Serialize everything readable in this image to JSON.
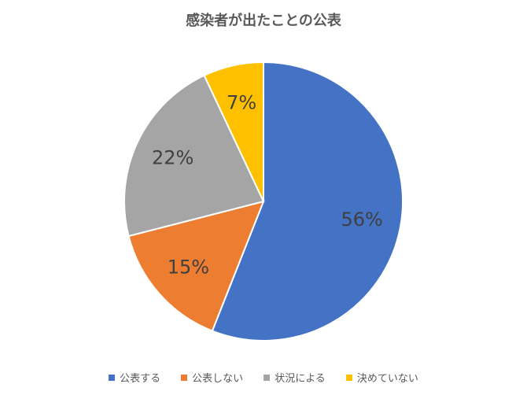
{
  "chart_data": {
    "type": "pie",
    "title": "感染者が出たことの公表",
    "categories": [
      "公表する",
      "公表しない",
      "状況による",
      "決めていない"
    ],
    "values": [
      56,
      15,
      22,
      7
    ],
    "data_labels": [
      "56%",
      "15%",
      "22%",
      "7%"
    ],
    "colors": [
      "#4472C4",
      "#ED7D31",
      "#A5A5A5",
      "#FFC000"
    ],
    "legend_position": "bottom",
    "start": "top, clockwise"
  }
}
